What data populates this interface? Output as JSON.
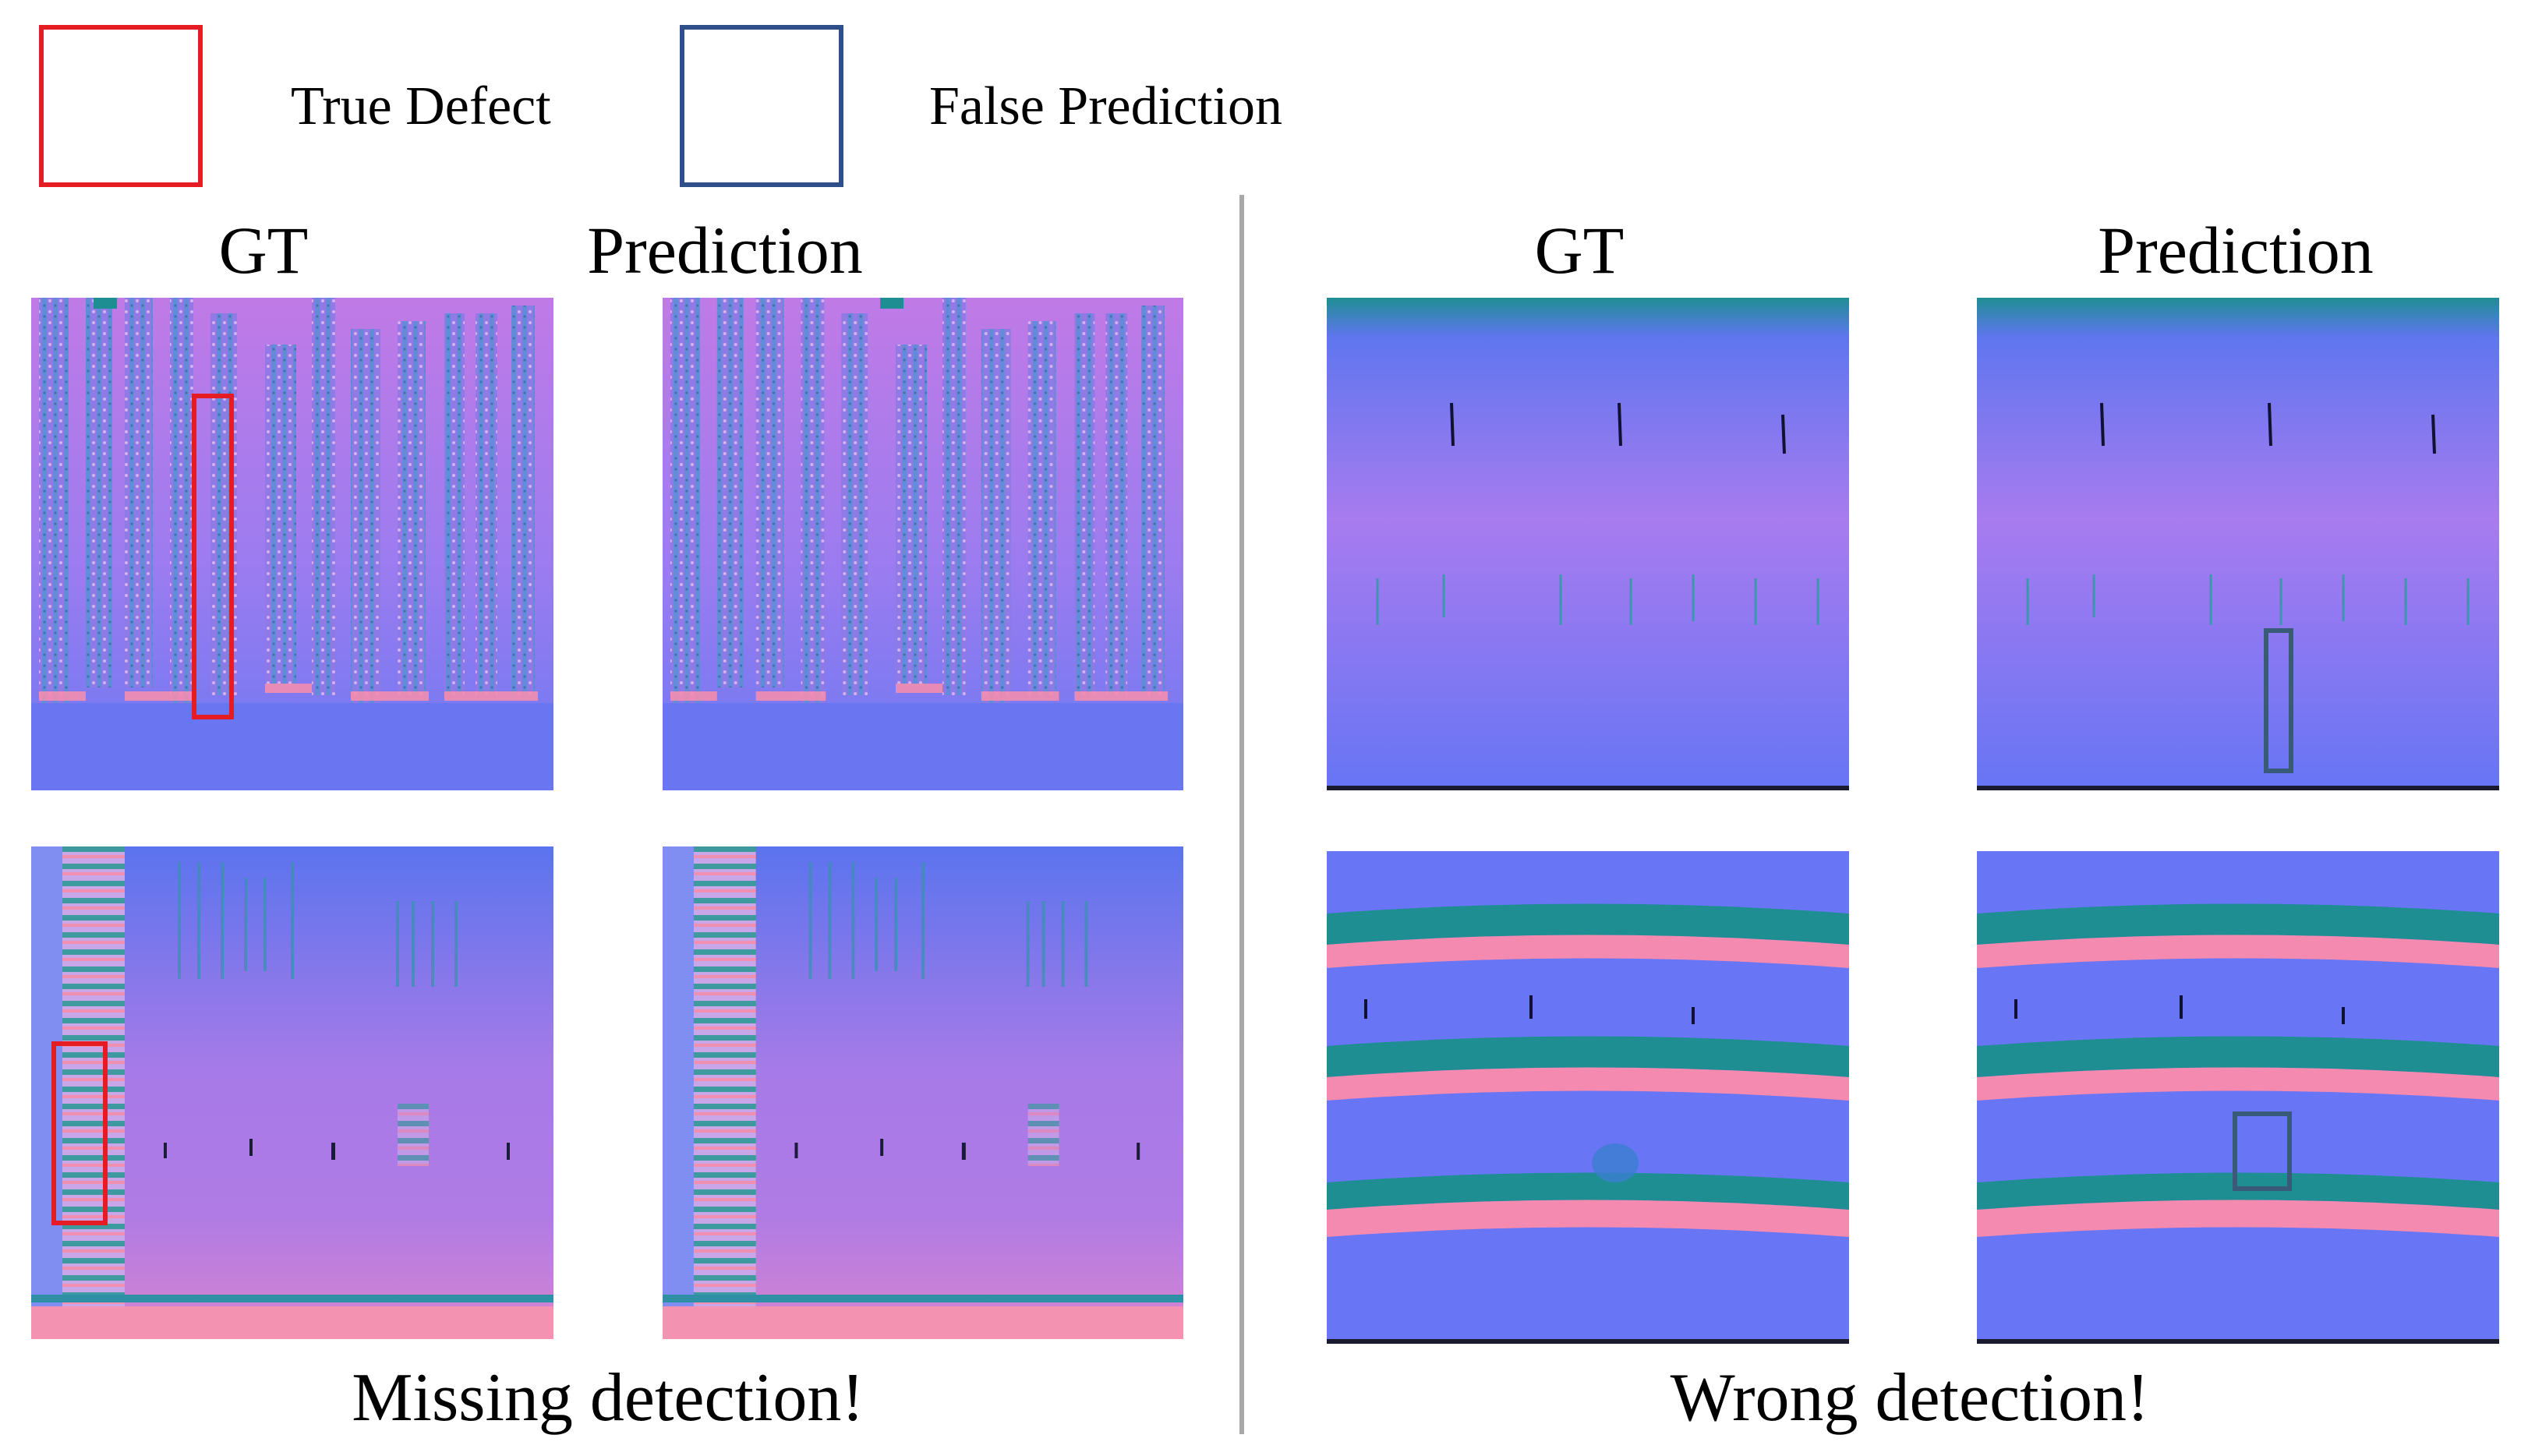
{
  "legend": {
    "true_defect_label": "True Defect",
    "false_prediction_label": "False Prediction",
    "true_defect_color": "#e51c23",
    "false_prediction_color": "#2f4f8a"
  },
  "left_group": {
    "gt_title": "GT",
    "prediction_title": "Prediction",
    "caption": "Missing detection!"
  },
  "right_group": {
    "gt_title": "GT",
    "prediction_title": "Prediction",
    "caption": "Wrong detection!"
  },
  "colors": {
    "divider": "#a8a8a8",
    "image_blue": "#6f74f2",
    "image_violet": "#b77be8",
    "image_teal": "#1f8e93",
    "image_pink": "#f58ab0"
  }
}
